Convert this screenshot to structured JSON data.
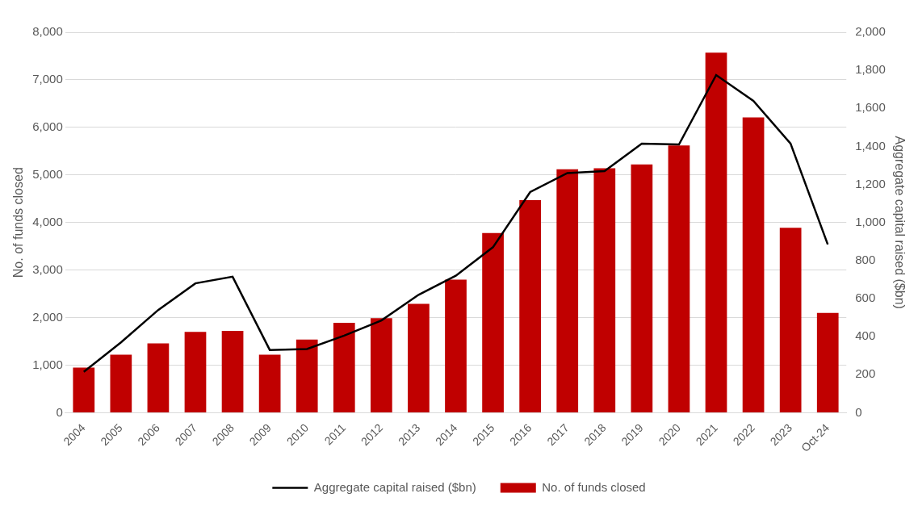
{
  "chart_data": {
    "type": "bar",
    "categories": [
      "2004",
      "2005",
      "2006",
      "2007",
      "2008",
      "2009",
      "2010",
      "2011",
      "2012",
      "2013",
      "2014",
      "2015",
      "2016",
      "2017",
      "2018",
      "2019",
      "2020",
      "2021",
      "2022",
      "2023",
      "Oct-24"
    ],
    "series": [
      {
        "name": "No. of funds closed",
        "type": "bar",
        "color": "#c00000",
        "values": [
          950,
          1220,
          1460,
          1700,
          1720,
          1220,
          1540,
          1890,
          1990,
          2290,
          2800,
          3780,
          4470,
          5120,
          5140,
          5220,
          5620,
          7570,
          6210,
          3890,
          2100
        ]
      },
      {
        "name": "Aggregate capital raised ($bn)",
        "type": "line",
        "color": "#000000",
        "axis": "y2",
        "values": [
          215,
          370,
          540,
          680,
          715,
          330,
          335,
          405,
          485,
          620,
          720,
          870,
          1160,
          1260,
          1270,
          1415,
          1410,
          1775,
          1640,
          1415,
          885
        ]
      }
    ],
    "y_label": "No. of funds closed",
    "y2_label": "Aggregate capital raised ($bn)",
    "ylim": [
      0,
      8000
    ],
    "yticks": [
      0,
      {
        "value": 1000,
        "label": "1,000"
      },
      {
        "value": 2000,
        "label": "2,000"
      },
      {
        "value": 3000,
        "label": "3,000"
      },
      {
        "value": 4000,
        "label": "4,000"
      },
      {
        "value": 5000,
        "label": "5,000"
      },
      {
        "value": 6000,
        "label": "6,000"
      },
      {
        "value": 7000,
        "label": "7,000"
      },
      {
        "value": 8000,
        "label": "8,000"
      }
    ],
    "y2lim": [
      0,
      2000
    ],
    "y2ticks": [
      0,
      200,
      400,
      600,
      800,
      {
        "value": 1000,
        "label": "1,000"
      },
      {
        "value": 1200,
        "label": "1,200"
      },
      {
        "value": 1400,
        "label": "1,400"
      },
      {
        "value": 1600,
        "label": "1,600"
      },
      {
        "value": 1800,
        "label": "1,800"
      },
      {
        "value": 2000,
        "label": "2,000"
      }
    ],
    "grid": true,
    "legend": "bottom"
  }
}
